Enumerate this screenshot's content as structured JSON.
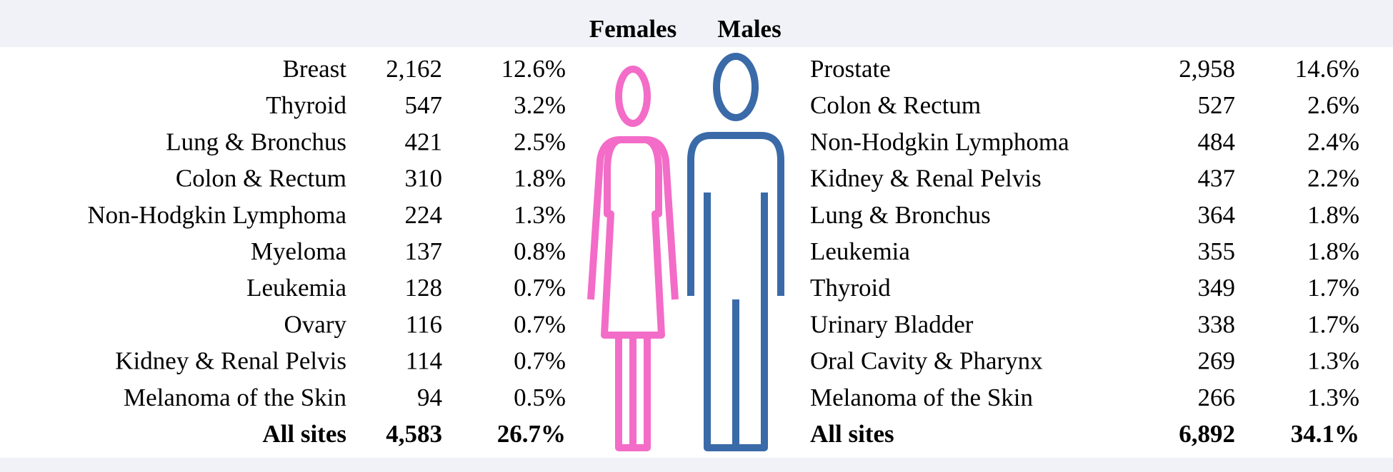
{
  "header": {
    "females": "Females",
    "males": "Males"
  },
  "females": {
    "rows": [
      [
        "Breast",
        "2,162",
        "12.6%"
      ],
      [
        "Thyroid",
        "547",
        "3.2%"
      ],
      [
        "Lung & Bronchus",
        "421",
        "2.5%"
      ],
      [
        "Colon & Rectum",
        "310",
        "1.8%"
      ],
      [
        "Non-Hodgkin Lymphoma",
        "224",
        "1.3%"
      ],
      [
        "Myeloma",
        "137",
        "0.8%"
      ],
      [
        "Leukemia",
        "128",
        "0.7%"
      ],
      [
        "Ovary",
        "116",
        "0.7%"
      ],
      [
        "Kidney & Renal Pelvis",
        "114",
        "0.7%"
      ],
      [
        "Melanoma of the Skin",
        "94",
        "0.5%"
      ]
    ],
    "total": [
      "All sites",
      "4,583",
      "26.7%"
    ]
  },
  "males": {
    "rows": [
      [
        "Prostate",
        "2,958",
        "14.6%"
      ],
      [
        "Colon & Rectum",
        "527",
        "2.6%"
      ],
      [
        "Non-Hodgkin Lymphoma",
        "484",
        "2.4%"
      ],
      [
        "Kidney & Renal Pelvis",
        "437",
        "2.2%"
      ],
      [
        "Lung & Bronchus",
        "364",
        "1.8%"
      ],
      [
        "Leukemia",
        "355",
        "1.8%"
      ],
      [
        "Thyroid",
        "349",
        "1.7%"
      ],
      [
        "Urinary Bladder",
        "338",
        "1.7%"
      ],
      [
        "Oral Cavity & Pharynx",
        "269",
        "1.3%"
      ],
      [
        "Melanoma of the Skin",
        "266",
        "1.3%"
      ]
    ],
    "total": [
      "All sites",
      "6,892",
      "34.1%"
    ]
  }
}
